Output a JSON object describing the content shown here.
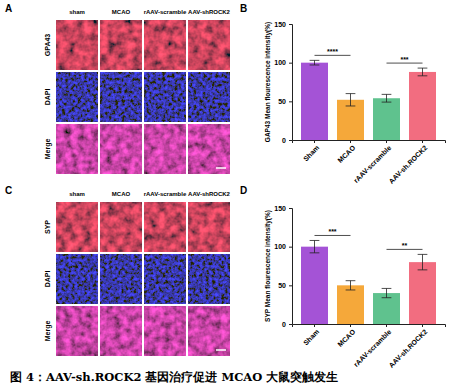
{
  "chart_data": [
    {
      "type": "bar",
      "y_label": "GAP43 Mean flourescence intensity(%)",
      "categories": [
        "Sham",
        "MCAO",
        "rAAV-scramble",
        "AAV-sh.ROCK2"
      ],
      "values": [
        100,
        52,
        54,
        88
      ],
      "errors": [
        3,
        8,
        5,
        5
      ],
      "colors": [
        "#a453d6",
        "#f5a83a",
        "#5fc28e",
        "#f26d80"
      ],
      "ylim": [
        0,
        150
      ],
      "yticks": [
        0,
        50,
        100,
        150
      ],
      "significance": [
        {
          "between": [
            "Sham",
            "MCAO"
          ],
          "label": "****"
        },
        {
          "between": [
            "rAAV-scramble",
            "AAV-sh.ROCK2"
          ],
          "label": "***"
        }
      ]
    },
    {
      "type": "bar",
      "y_label": "SYP Mean flourescence intensity(%)",
      "categories": [
        "Sham",
        "MCAO",
        "rAAV-scramble",
        "AAV-sh.ROCK2"
      ],
      "values": [
        100,
        50,
        40,
        80
      ],
      "errors": [
        8,
        6,
        6,
        10
      ],
      "colors": [
        "#a453d6",
        "#f5a83a",
        "#5fc28e",
        "#f26d80"
      ],
      "ylim": [
        0,
        150
      ],
      "yticks": [
        0,
        50,
        100,
        150
      ],
      "significance": [
        {
          "between": [
            "Sham",
            "MCAO"
          ],
          "label": "***"
        },
        {
          "between": [
            "rAAV-scramble",
            "AAV-sh.ROCK2"
          ],
          "label": "**"
        }
      ]
    }
  ],
  "panel_labels": [
    "A",
    "B",
    "C",
    "D"
  ],
  "image_panels": [
    {
      "columns": [
        "sham",
        "MCAO",
        "rAAV-scramble",
        "AAV-shROCK2"
      ],
      "rows": [
        "GPA43",
        "DAPI",
        "Merge"
      ]
    },
    {
      "columns": [
        "sham",
        "MCAO",
        "rAAV-scramble",
        "AAV-shROCK2"
      ],
      "rows": [
        "SYP",
        "DAPI",
        "Merge"
      ]
    }
  ],
  "caption": "图 4：AAV-sh.ROCK2 基因治疗促进 MCAO 大鼠突触发生"
}
